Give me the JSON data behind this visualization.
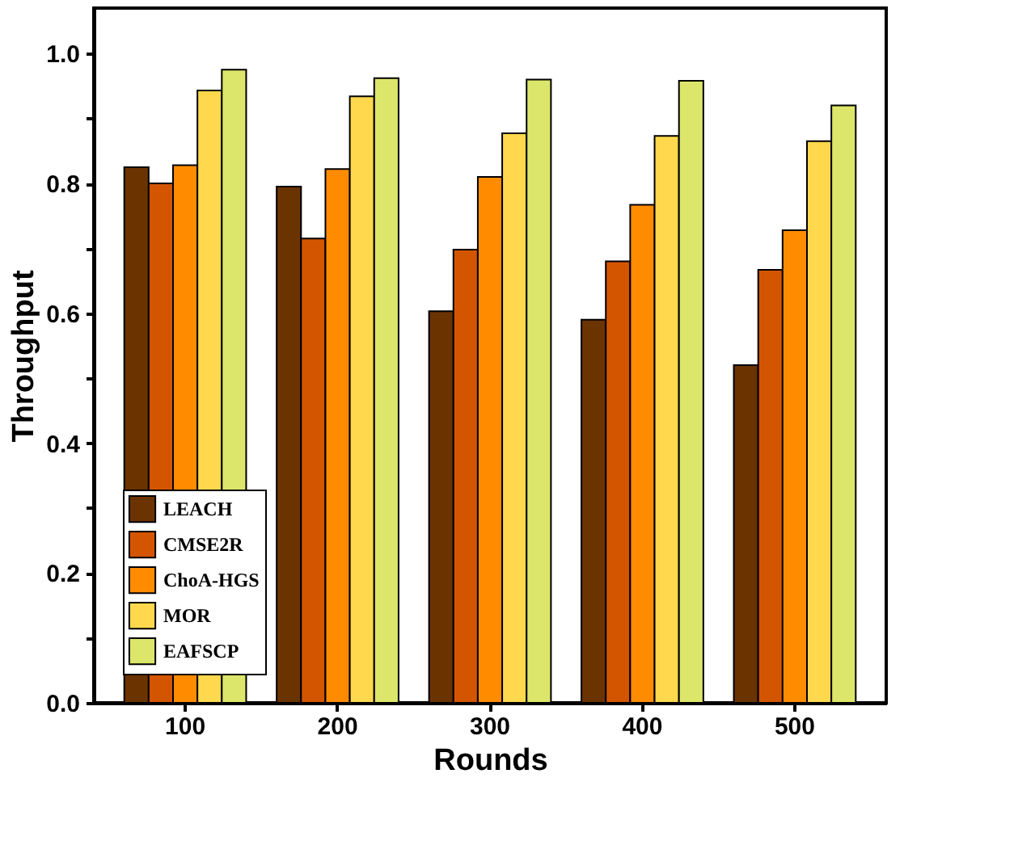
{
  "chart_data": {
    "type": "bar",
    "xlabel": "Rounds",
    "ylabel": "Throughput",
    "categories": [
      "100",
      "200",
      "300",
      "400",
      "500"
    ],
    "series": [
      {
        "name": "LEACH",
        "color": "#6b3300",
        "values": [
          0.825,
          0.795,
          0.603,
          0.59,
          0.52
        ]
      },
      {
        "name": "CMSE2R",
        "color": "#d45500",
        "values": [
          0.8,
          0.715,
          0.698,
          0.68,
          0.667
        ]
      },
      {
        "name": "ChoA-HGS",
        "color": "#ff8c00",
        "values": [
          0.828,
          0.822,
          0.81,
          0.767,
          0.728
        ]
      },
      {
        "name": "MOR",
        "color": "#ffd84d",
        "values": [
          0.943,
          0.934,
          0.877,
          0.873,
          0.865
        ]
      },
      {
        "name": "EAFSCP",
        "color": "#dce66a",
        "values": [
          0.975,
          0.962,
          0.96,
          0.958,
          0.92
        ]
      }
    ],
    "ylim": [
      0,
      1.07
    ],
    "yticks": [
      {
        "value": 0,
        "label": "0.0"
      },
      {
        "value": 0.1,
        "label": null
      },
      {
        "value": 0.2,
        "label": "0.2"
      },
      {
        "value": 0.3,
        "label": null
      },
      {
        "value": 0.4,
        "label": "0.4"
      },
      {
        "value": 0.5,
        "label": null
      },
      {
        "value": 0.6,
        "label": "0.6"
      },
      {
        "value": 0.7,
        "label": null
      },
      {
        "value": 0.8,
        "label": "0.8"
      },
      {
        "value": 0.9,
        "label": null
      },
      {
        "value": 1.0,
        "label": "1.0"
      }
    ],
    "grid": false,
    "legend": "bottom left"
  }
}
